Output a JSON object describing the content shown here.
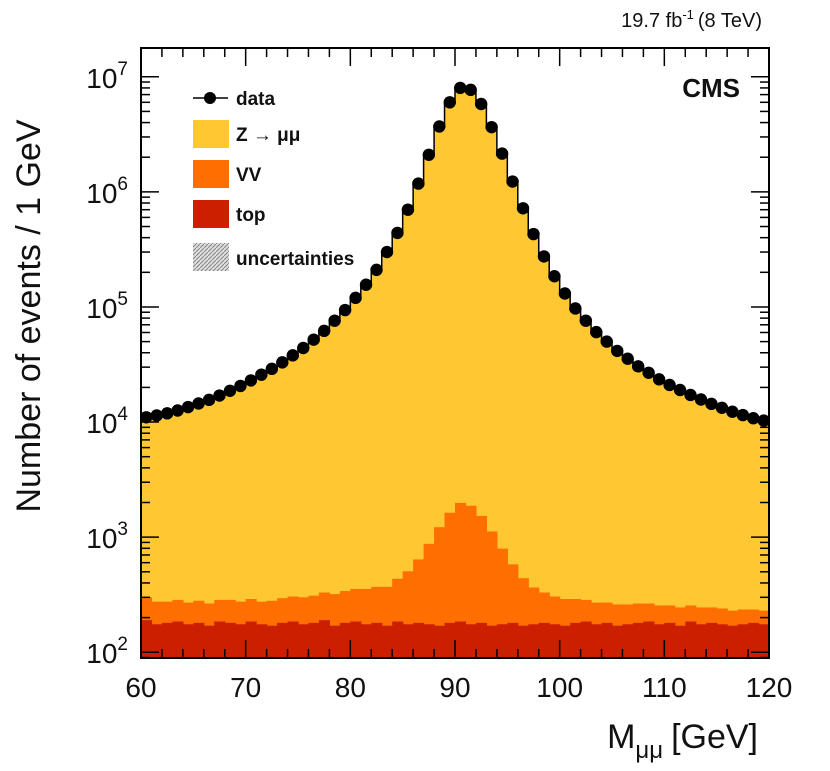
{
  "chart_data": {
    "type": "stacked-histogram",
    "title": "",
    "lumi_label": "19.7 fb",
    "lumi_exponent": "-1",
    "lumi_energy": "(8 TeV)",
    "experiment_label": "CMS",
    "xlabel": "M",
    "xlabel_subscript": "μμ",
    "xlabel_unit": "[GeV]",
    "ylabel": "Number of events / 1 GeV",
    "xlim": [
      60,
      120
    ],
    "ylim_log10": [
      1.95,
      7.25
    ],
    "y_scale": "log",
    "x_ticks": [
      60,
      70,
      80,
      90,
      100,
      110,
      120
    ],
    "x_tick_labels": [
      "60",
      "70",
      "80",
      "90",
      "100",
      "110",
      "120"
    ],
    "y_ticks_exponents": [
      2,
      3,
      4,
      5,
      6,
      7
    ],
    "y_tick_base": "10",
    "bin_width": 1,
    "legend_position": "top-left",
    "legend": [
      {
        "key": "data",
        "label": "data",
        "style": "marker"
      },
      {
        "key": "z",
        "label": "Z → μμ",
        "style": "fill",
        "color": "#ffc832"
      },
      {
        "key": "vv",
        "label": "VV",
        "style": "fill",
        "color": "#ff6e00"
      },
      {
        "key": "top",
        "label": "top",
        "style": "fill",
        "color": "#cc1f00"
      },
      {
        "key": "unc",
        "label": "uncertainties",
        "style": "hatch"
      }
    ],
    "colors": {
      "z": "#ffc832",
      "vv": "#ff6e00",
      "top": "#cc1f00",
      "data": "#000000"
    },
    "bin_low_edges": [
      60,
      61,
      62,
      63,
      64,
      65,
      66,
      67,
      68,
      69,
      70,
      71,
      72,
      73,
      74,
      75,
      76,
      77,
      78,
      79,
      80,
      81,
      82,
      83,
      84,
      85,
      86,
      87,
      88,
      89,
      90,
      91,
      92,
      93,
      94,
      95,
      96,
      97,
      98,
      99,
      100,
      101,
      102,
      103,
      104,
      105,
      106,
      107,
      108,
      109,
      110,
      111,
      112,
      113,
      114,
      115,
      116,
      117,
      118,
      119
    ],
    "series": [
      {
        "name": "top",
        "values": [
          190,
          175,
          180,
          185,
          175,
          180,
          170,
          185,
          180,
          175,
          185,
          175,
          170,
          180,
          185,
          175,
          180,
          190,
          170,
          180,
          185,
          175,
          180,
          170,
          185,
          175,
          180,
          175,
          170,
          180,
          185,
          175,
          180,
          170,
          175,
          180,
          170,
          175,
          180,
          175,
          170,
          180,
          185,
          175,
          180,
          170,
          175,
          180,
          185,
          175,
          180,
          170,
          185,
          175,
          180,
          175,
          170,
          175,
          180,
          175
        ]
      },
      {
        "name": "VV",
        "values": [
          110,
          100,
          95,
          100,
          95,
          100,
          95,
          100,
          105,
          100,
          105,
          100,
          110,
          115,
          120,
          125,
          130,
          140,
          150,
          160,
          170,
          180,
          190,
          200,
          250,
          330,
          460,
          700,
          1050,
          1450,
          1800,
          1700,
          1350,
          950,
          620,
          400,
          270,
          190,
          150,
          130,
          120,
          110,
          100,
          95,
          90,
          90,
          85,
          85,
          80,
          80,
          75,
          75,
          70,
          70,
          65,
          65,
          60,
          60,
          55,
          55
        ]
      },
      {
        "name": "Z → μμ",
        "values": [
          10700,
          11000,
          11600,
          12300,
          13200,
          14200,
          15300,
          16700,
          18300,
          20300,
          22600,
          25200,
          28300,
          32200,
          37000,
          43000,
          51000,
          61000,
          74000,
          92000,
          117000,
          152000,
          205000,
          290000,
          430000,
          680000,
          1150000,
          2050000,
          3650000,
          5900000,
          7900000,
          7600000,
          5700000,
          3600000,
          2100000,
          1200000,
          700000,
          420000,
          268000,
          180000,
          128000,
          95000,
          74000,
          59000,
          48500,
          40500,
          34500,
          29800,
          26000,
          23000,
          20500,
          18500,
          16800,
          15300,
          14000,
          12900,
          12000,
          11200,
          10500,
          10000
        ]
      },
      {
        "name": "data",
        "values": [
          11000,
          11400,
          11900,
          12600,
          13500,
          14500,
          15600,
          17000,
          18700,
          20600,
          23000,
          25800,
          29000,
          33000,
          38000,
          44000,
          52000,
          62000,
          76000,
          94000,
          120000,
          156000,
          210000,
          300000,
          440000,
          700000,
          1180000,
          2100000,
          3700000,
          6000000,
          8000000,
          7700000,
          5800000,
          3650000,
          2150000,
          1230000,
          720000,
          430000,
          275000,
          185000,
          131000,
          97000,
          76000,
          60500,
          50000,
          41500,
          35500,
          30500,
          26800,
          23500,
          21000,
          19000,
          17200,
          15700,
          14400,
          13300,
          12300,
          11500,
          10800,
          10300
        ]
      }
    ]
  }
}
